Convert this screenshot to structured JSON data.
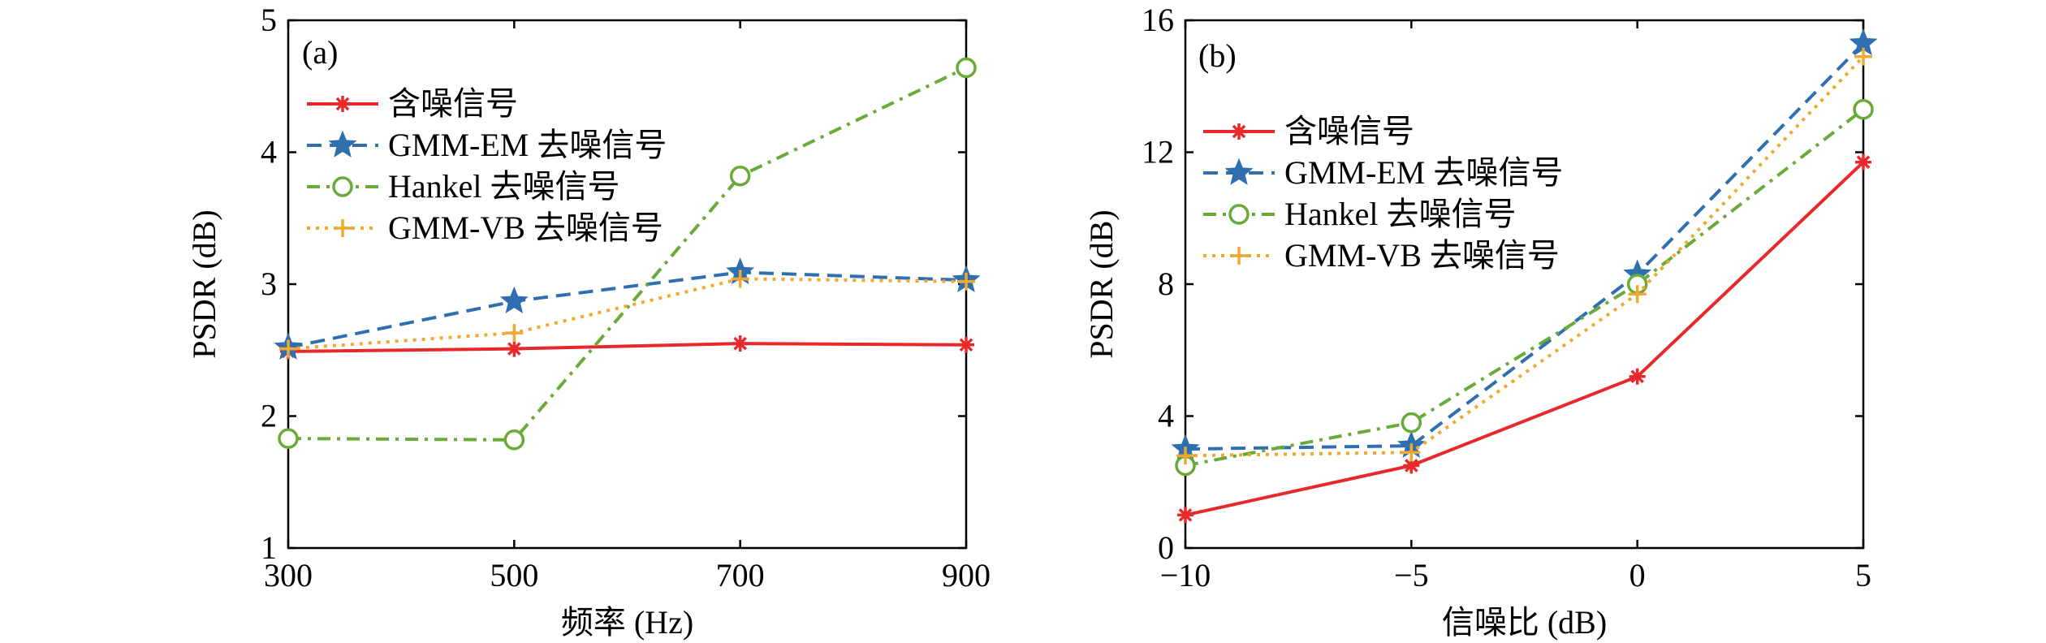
{
  "chart_data": [
    {
      "type": "line",
      "panel_label": "(a)",
      "xlabel": "频率 (Hz)",
      "ylabel": "PSDR (dB)",
      "x": [
        300,
        500,
        700,
        900
      ],
      "xticks": [
        "300",
        "500",
        "700",
        "900"
      ],
      "yticks": [
        "1",
        "2",
        "3",
        "4",
        "5"
      ],
      "xlim": [
        300,
        900
      ],
      "ylim": [
        1,
        5
      ],
      "grid": false,
      "legend_position": "upper-left",
      "series": [
        {
          "name": "含噪信号",
          "values": [
            2.49,
            2.51,
            2.55,
            2.54
          ],
          "color": "#e8292b",
          "linestyle": "solid",
          "marker": "asterisk"
        },
        {
          "name": "GMM-EM 去噪信号",
          "values": [
            2.52,
            2.87,
            3.09,
            3.03
          ],
          "color": "#2f6fb0",
          "linestyle": "dashed",
          "marker": "star"
        },
        {
          "name": "Hankel 去噪信号",
          "values": [
            1.83,
            1.82,
            3.82,
            4.64
          ],
          "color": "#6aaa3a",
          "linestyle": "dashdot",
          "marker": "circle"
        },
        {
          "name": "GMM-VB 去噪信号",
          "values": [
            2.51,
            2.63,
            3.04,
            3.02
          ],
          "color": "#f0a830",
          "linestyle": "dotted",
          "marker": "plus"
        }
      ]
    },
    {
      "type": "line",
      "panel_label": "(b)",
      "xlabel": "信噪比 (dB)",
      "ylabel": "PSDR (dB)",
      "x": [
        -10,
        -5,
        0,
        5
      ],
      "xticks": [
        "−10",
        "−5",
        "0",
        "5"
      ],
      "yticks": [
        "0",
        "4",
        "8",
        "12",
        "16"
      ],
      "xlim": [
        -10,
        5
      ],
      "ylim": [
        0,
        16
      ],
      "grid": false,
      "legend_position": "upper-left",
      "series": [
        {
          "name": "含噪信号",
          "values": [
            1.0,
            2.5,
            5.2,
            11.7
          ],
          "color": "#e8292b",
          "linestyle": "solid",
          "marker": "asterisk"
        },
        {
          "name": "GMM-EM 去噪信号",
          "values": [
            3.0,
            3.1,
            8.3,
            15.3
          ],
          "color": "#2f6fb0",
          "linestyle": "dashed",
          "marker": "star"
        },
        {
          "name": "Hankel 去噪信号",
          "values": [
            2.5,
            3.8,
            8.0,
            13.3
          ],
          "color": "#6aaa3a",
          "linestyle": "dashdot",
          "marker": "circle"
        },
        {
          "name": "GMM-VB 去噪信号",
          "values": [
            2.8,
            2.9,
            7.7,
            14.9
          ],
          "color": "#f0a830",
          "linestyle": "dotted",
          "marker": "plus"
        }
      ]
    }
  ]
}
